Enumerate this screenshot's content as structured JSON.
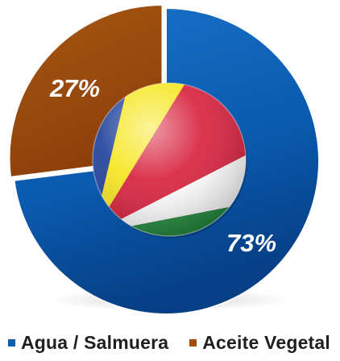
{
  "chart_data": {
    "type": "pie",
    "categories": [
      "Agua / Salmuera",
      "Aceite Vegetal"
    ],
    "values": [
      73,
      27
    ],
    "data_labels": [
      "73%",
      "27%"
    ],
    "colors": [
      "#0a5fb4",
      "#a34e0e"
    ],
    "legend_position": "bottom",
    "center_icon": "seychelles-flag-sphere-icon"
  },
  "legend": {
    "items": [
      {
        "label": "Agua / Salmuera",
        "color": "#0a5fb4"
      },
      {
        "label": "Aceite Vegetal",
        "color": "#a34e0e"
      }
    ]
  }
}
